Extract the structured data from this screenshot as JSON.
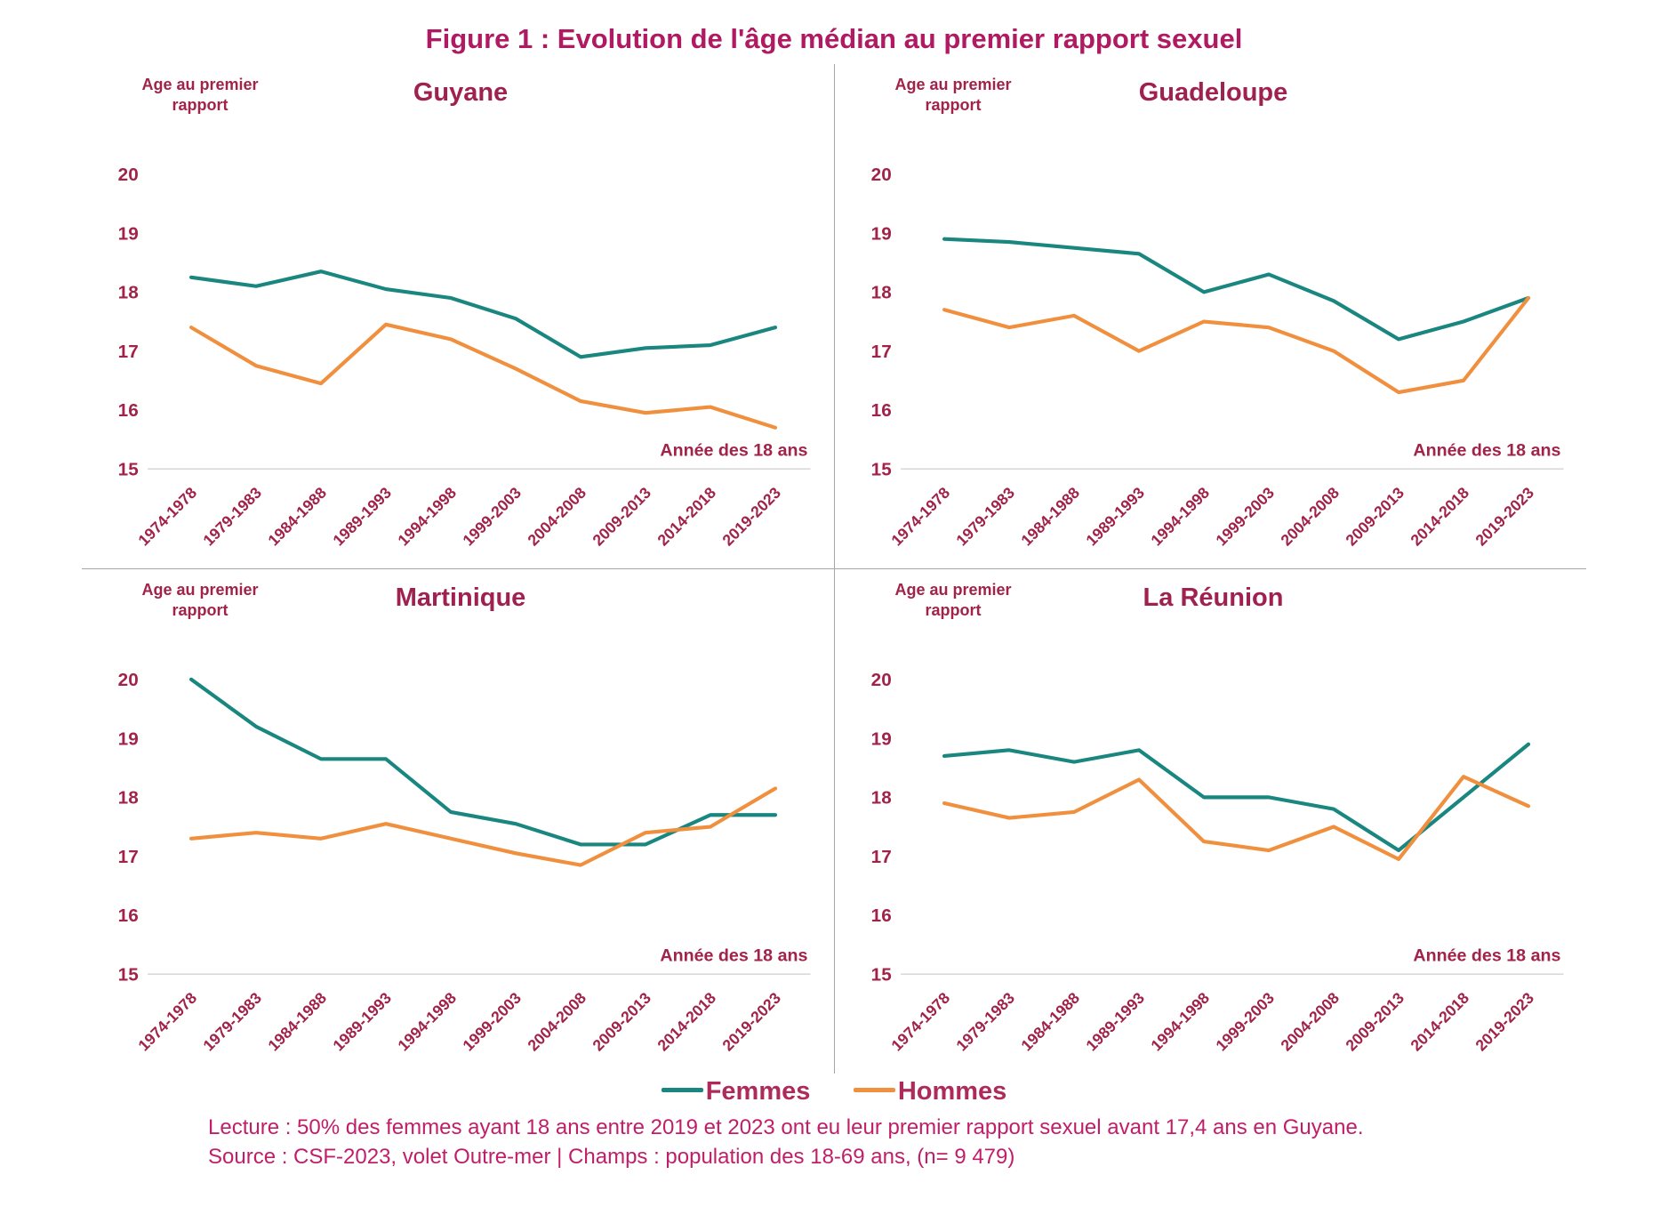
{
  "page": {
    "title": "Figure 1 : Evolution de l'âge médian au premier rapport sexuel",
    "footer": {
      "lecture": "Lecture : 50% des femmes ayant 18 ans entre 2019 et 2023 ont eu leur premier rapport sexuel avant 17,4 ans en Guyane.",
      "source": "Source : CSF-2023, volet Outre-mer | Champs : population des 18-69 ans, (n= 9 479)"
    }
  },
  "legend": {
    "femmes": "Femmes",
    "hommes": "Hommes"
  },
  "axis": {
    "y_label": "Age au premier\nrapport",
    "x_label": "Année des 18 ans",
    "y_ticks": [
      20,
      19,
      18,
      17,
      16,
      15
    ]
  },
  "colors": {
    "femmes": "#1A8680",
    "hommes": "#F0903E",
    "page-title": "#B01A62",
    "chart-title": "#9E2150",
    "crimson": "#A12349",
    "legend-text": "#AD2A5A",
    "footer-text": "#C11E6A",
    "axis-line": "#D9D9D9",
    "divider": "#A6A6A6"
  },
  "chart_data": [
    {
      "type": "line",
      "title": "Guyane",
      "xlabel": "Année des 18 ans",
      "ylabel": "Age au premier rapport",
      "ylim": [
        15,
        20
      ],
      "grid": false,
      "legend_position": "bottom",
      "categories": [
        "1974-1978",
        "1979-1983",
        "1984-1988",
        "1989-1993",
        "1994-1998",
        "1999-2003",
        "2004-2008",
        "2009-2013",
        "2014-2018",
        "2019-2023"
      ],
      "series": [
        {
          "name": "Femmes",
          "color": "#1A8680",
          "values": [
            18.25,
            18.1,
            18.35,
            18.05,
            17.9,
            17.55,
            16.9,
            17.05,
            17.1,
            17.4
          ]
        },
        {
          "name": "Hommes",
          "color": "#F0903E",
          "values": [
            17.4,
            16.75,
            16.45,
            17.45,
            17.2,
            16.7,
            16.15,
            15.95,
            16.05,
            15.7
          ]
        }
      ]
    },
    {
      "type": "line",
      "title": "Guadeloupe",
      "xlabel": "Année des 18 ans",
      "ylabel": "Age au premier rapport",
      "ylim": [
        15,
        20
      ],
      "grid": false,
      "legend_position": "bottom",
      "categories": [
        "1974-1978",
        "1979-1983",
        "1984-1988",
        "1989-1993",
        "1994-1998",
        "1999-2003",
        "2004-2008",
        "2009-2013",
        "2014-2018",
        "2019-2023"
      ],
      "series": [
        {
          "name": "Femmes",
          "color": "#1A8680",
          "values": [
            18.9,
            18.85,
            18.75,
            18.65,
            18.0,
            18.3,
            17.85,
            17.2,
            17.5,
            17.9
          ]
        },
        {
          "name": "Hommes",
          "color": "#F0903E",
          "values": [
            17.7,
            17.4,
            17.6,
            17.0,
            17.5,
            17.4,
            17.0,
            16.3,
            16.5,
            17.9
          ]
        }
      ]
    },
    {
      "type": "line",
      "title": "Martinique",
      "xlabel": "Année des 18 ans",
      "ylabel": "Age au premier rapport",
      "ylim": [
        15,
        20
      ],
      "grid": false,
      "legend_position": "bottom",
      "categories": [
        "1974-1978",
        "1979-1983",
        "1984-1988",
        "1989-1993",
        "1994-1998",
        "1999-2003",
        "2004-2008",
        "2009-2013",
        "2014-2018",
        "2019-2023"
      ],
      "series": [
        {
          "name": "Femmes",
          "color": "#1A8680",
          "values": [
            20.0,
            19.2,
            18.65,
            18.65,
            17.75,
            17.55,
            17.2,
            17.2,
            17.7,
            17.7
          ]
        },
        {
          "name": "Hommes",
          "color": "#F0903E",
          "values": [
            17.3,
            17.4,
            17.3,
            17.55,
            17.3,
            17.05,
            16.85,
            17.4,
            17.5,
            18.15
          ]
        }
      ]
    },
    {
      "type": "line",
      "title": "La Réunion",
      "xlabel": "Année des 18 ans",
      "ylabel": "Age au premier rapport",
      "ylim": [
        15,
        20
      ],
      "grid": false,
      "legend_position": "bottom",
      "categories": [
        "1974-1978",
        "1979-1983",
        "1984-1988",
        "1989-1993",
        "1994-1998",
        "1999-2003",
        "2004-2008",
        "2009-2013",
        "2014-2018",
        "2019-2023"
      ],
      "series": [
        {
          "name": "Femmes",
          "color": "#1A8680",
          "values": [
            18.7,
            18.8,
            18.6,
            18.8,
            18.0,
            18.0,
            17.8,
            17.1,
            18.0,
            18.9
          ]
        },
        {
          "name": "Hommes",
          "color": "#F0903E",
          "values": [
            17.9,
            17.65,
            17.75,
            18.3,
            17.25,
            17.1,
            17.5,
            16.95,
            18.35,
            17.85
          ]
        }
      ]
    }
  ]
}
